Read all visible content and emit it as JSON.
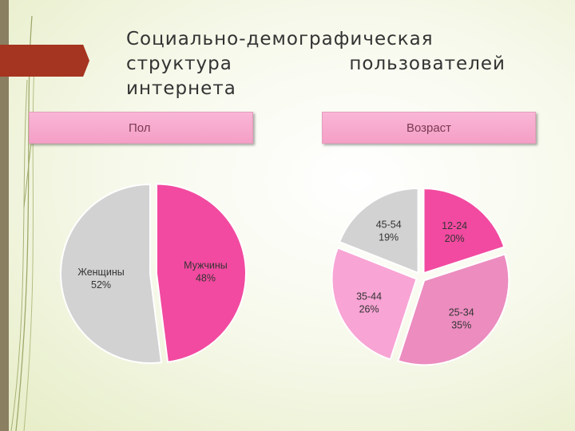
{
  "title_lines": [
    "Социально-демографическая",
    "структура пользователей",
    "интернета"
  ],
  "colors": {
    "accent_arrow": "#a53520",
    "left_bar": "#8a7f61",
    "header_bg": "#f7a8cc"
  },
  "chart_data": [
    {
      "type": "pie",
      "header": "Пол",
      "slices": [
        {
          "label": "Мужчины",
          "value": 48,
          "display": "48%",
          "color": "#f24aa0"
        },
        {
          "label": "Женщины",
          "value": 52,
          "display": "52%",
          "color": "#d2d2d2"
        }
      ]
    },
    {
      "type": "pie",
      "header": "Возраст",
      "slices": [
        {
          "label": "12-24",
          "value": 20,
          "display": "20%",
          "color": "#f24aa0"
        },
        {
          "label": "25-34",
          "value": 35,
          "display": "35%",
          "color": "#ec8cbf"
        },
        {
          "label": "35-44",
          "value": 26,
          "display": "26%",
          "color": "#f8a4d4"
        },
        {
          "label": "45-54",
          "value": 19,
          "display": "19%",
          "color": "#d2d2d2"
        }
      ]
    }
  ]
}
